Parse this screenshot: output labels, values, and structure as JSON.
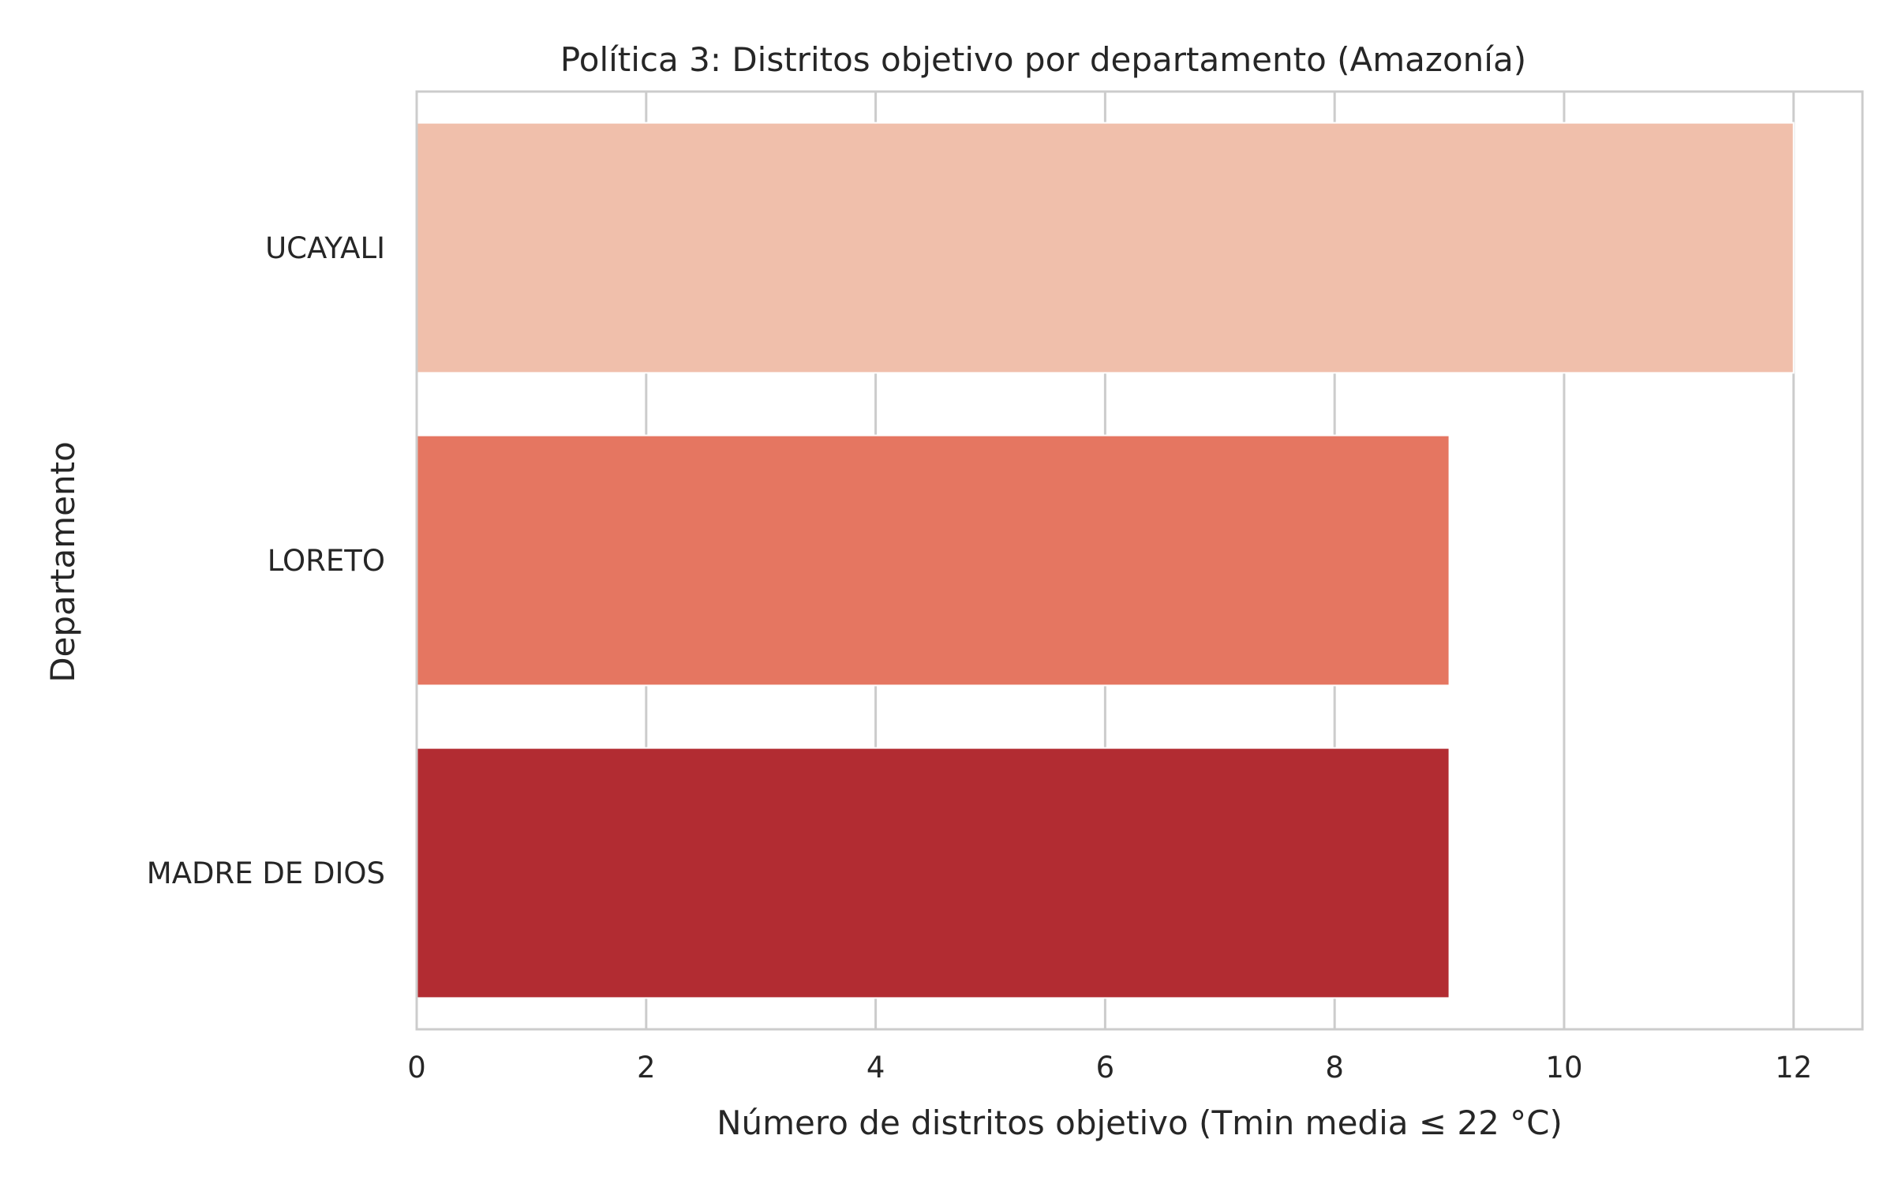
{
  "chart_data": {
    "type": "bar",
    "orientation": "horizontal",
    "title": "Política 3: Distritos objetivo por departamento (Amazonía)",
    "xlabel": "Número de distritos objetivo (Tmin media ≤ 22 °C)",
    "ylabel": "Departamento",
    "categories": [
      "UCAYALI",
      "LORETO",
      "MADRE DE DIOS"
    ],
    "values": [
      12,
      9,
      9
    ],
    "colors": [
      "#f0bfab",
      "#e57661",
      "#b22c32"
    ],
    "xlim": [
      0,
      12.6
    ],
    "xticks": [
      0,
      2,
      4,
      6,
      8,
      10,
      12
    ],
    "xtick_labels": [
      "0",
      "2",
      "4",
      "6",
      "8",
      "10",
      "12"
    ],
    "grid": true,
    "grid_color": "#cccccc",
    "background": "#ffffff",
    "legend": "none"
  }
}
